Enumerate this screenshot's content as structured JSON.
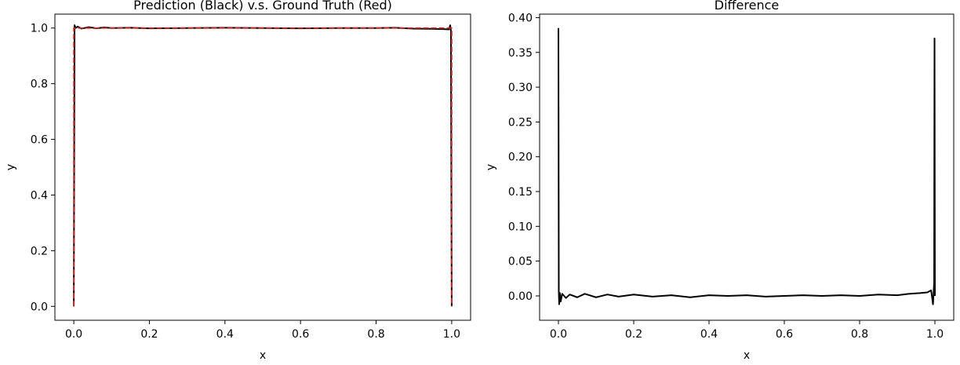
{
  "chart_data": [
    {
      "type": "line",
      "title": "Prediction (Black) v.s. Ground Truth (Red)",
      "xlabel": "x",
      "ylabel": "y",
      "xlim": [
        -0.05,
        1.05
      ],
      "ylim": [
        -0.05,
        1.05
      ],
      "xticks": [
        0.0,
        0.2,
        0.4,
        0.6,
        0.8,
        1.0
      ],
      "xtick_labels": [
        "0.0",
        "0.2",
        "0.4",
        "0.6",
        "0.8",
        "1.0"
      ],
      "yticks": [
        0.0,
        0.2,
        0.4,
        0.6,
        0.8,
        1.0
      ],
      "ytick_labels": [
        "0.0",
        "0.2",
        "0.4",
        "0.6",
        "0.8",
        "1.0"
      ],
      "grid": false,
      "series": [
        {
          "color": "#000000",
          "style": "solid",
          "x": [
            0.0,
            0.002,
            0.005,
            0.01,
            0.02,
            0.04,
            0.06,
            0.08,
            0.1,
            0.15,
            0.2,
            0.3,
            0.4,
            0.5,
            0.6,
            0.7,
            0.8,
            0.85,
            0.9,
            0.95,
            0.98,
            0.993,
            0.996,
            0.998,
            1.0
          ],
          "y": [
            0.0,
            1.01,
            1.0,
            1.005,
            0.998,
            1.003,
            0.999,
            1.002,
            1.0,
            1.001,
            0.999,
            1.0,
            1.001,
            1.0,
            0.999,
            1.0,
            1.0,
            1.001,
            0.998,
            0.997,
            0.996,
            0.995,
            1.01,
            0.99,
            0.0
          ]
        },
        {
          "color": "#d62728",
          "style": "dashed",
          "x": [
            0.0,
            0.0,
            1.0,
            1.0
          ],
          "y": [
            0.0,
            1.0,
            1.0,
            0.0
          ]
        }
      ]
    },
    {
      "type": "line",
      "title": "Difference",
      "xlabel": "x",
      "ylabel": "y",
      "xlim": [
        -0.05,
        1.05
      ],
      "ylim": [
        -0.035,
        0.405
      ],
      "xticks": [
        0.0,
        0.2,
        0.4,
        0.6,
        0.8,
        1.0
      ],
      "xtick_labels": [
        "0.0",
        "0.2",
        "0.4",
        "0.6",
        "0.8",
        "1.0"
      ],
      "yticks": [
        0.0,
        0.05,
        0.1,
        0.15,
        0.2,
        0.25,
        0.3,
        0.35,
        0.4
      ],
      "ytick_labels": [
        "0.00",
        "0.05",
        "0.10",
        "0.15",
        "0.20",
        "0.25",
        "0.30",
        "0.35",
        "0.40"
      ],
      "grid": false,
      "series": [
        {
          "color": "#000000",
          "style": "solid",
          "x": [
            0.0,
            0.001,
            0.002,
            0.004,
            0.006,
            0.01,
            0.02,
            0.03,
            0.05,
            0.07,
            0.1,
            0.13,
            0.16,
            0.2,
            0.25,
            0.3,
            0.35,
            0.4,
            0.45,
            0.5,
            0.55,
            0.6,
            0.65,
            0.7,
            0.75,
            0.8,
            0.85,
            0.9,
            0.93,
            0.96,
            0.98,
            0.99,
            0.995,
            0.998,
            0.999,
            1.0
          ],
          "y": [
            0.385,
            0.005,
            -0.012,
            0.004,
            -0.008,
            0.003,
            -0.003,
            0.002,
            -0.002,
            0.003,
            -0.002,
            0.002,
            -0.001,
            0.002,
            -0.001,
            0.001,
            -0.002,
            0.001,
            0.0,
            0.001,
            -0.001,
            0.0,
            0.001,
            0.0,
            0.001,
            0.0,
            0.002,
            0.001,
            0.003,
            0.004,
            0.005,
            0.008,
            -0.012,
            0.02,
            0.37,
            0.0
          ]
        }
      ]
    }
  ]
}
